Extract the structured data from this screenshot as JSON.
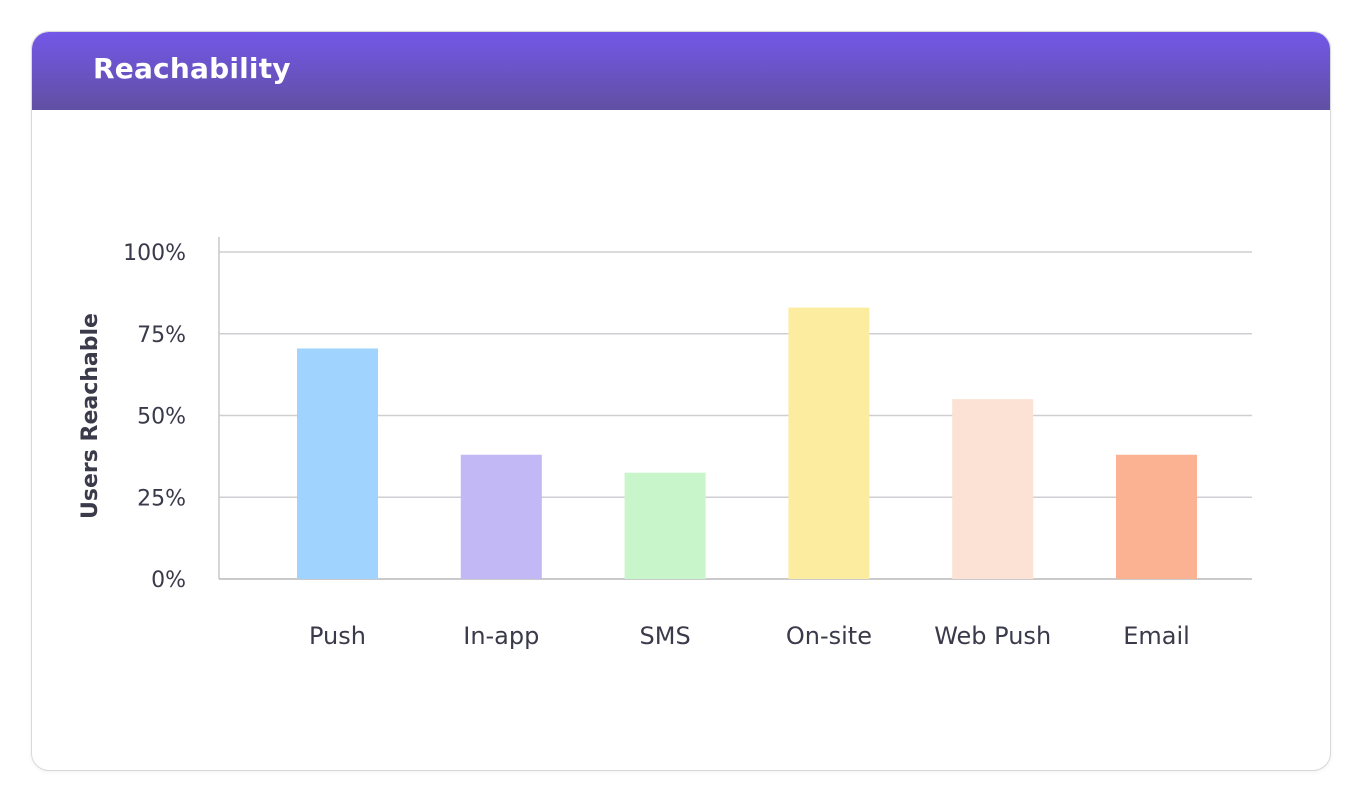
{
  "card": {
    "title": "Reachability"
  },
  "chart_data": {
    "type": "bar",
    "title": "Reachability",
    "xlabel": "",
    "ylabel": "Users Reachable",
    "categories": [
      "Push",
      "In-app",
      "SMS",
      "On-site",
      "Web Push",
      "Email"
    ],
    "values": [
      70.5,
      38,
      32.5,
      83,
      55,
      38
    ],
    "colors": [
      "#a0d4fe",
      "#c2b8f5",
      "#c8f5c9",
      "#fcec9f",
      "#fbe2d4",
      "#fbb293"
    ],
    "ylim": [
      0,
      100
    ],
    "yticks": [
      0,
      25,
      50,
      75,
      100
    ],
    "ytick_labels": [
      "0%",
      "25%",
      "50%",
      "75%",
      "100%"
    ],
    "grid": true,
    "legend": "none"
  }
}
